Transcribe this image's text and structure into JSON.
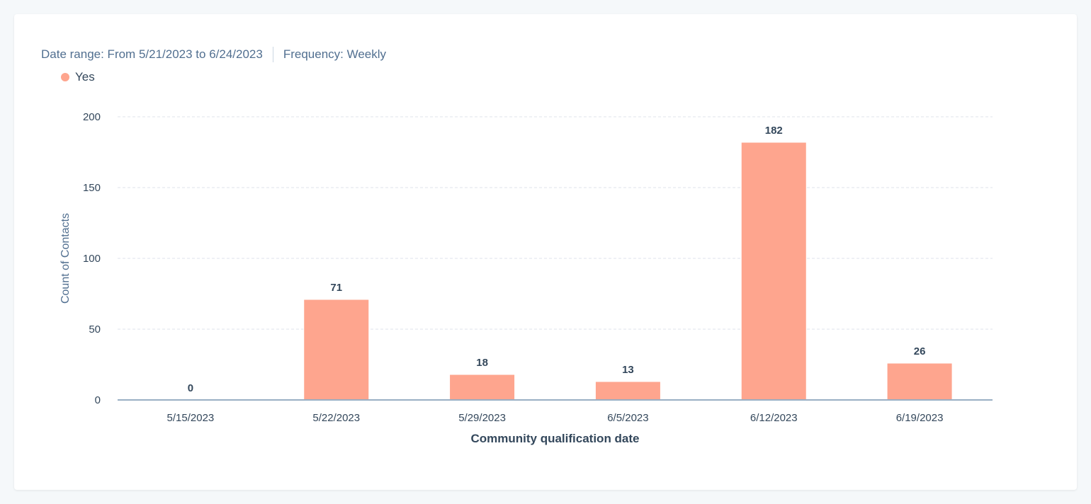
{
  "header": {
    "date_range": "Date range: From 5/21/2023 to 6/24/2023",
    "frequency": "Frequency: Weekly"
  },
  "chart_data": {
    "type": "bar",
    "categories": [
      "5/15/2023",
      "5/22/2023",
      "5/29/2023",
      "6/5/2023",
      "6/12/2023",
      "6/19/2023"
    ],
    "series": [
      {
        "name": "Yes",
        "values": [
          0,
          71,
          18,
          13,
          182,
          26
        ],
        "color": "#fea58e"
      }
    ],
    "xlabel": "Community qualification date",
    "ylabel": "Count of Contacts",
    "ylim": [
      0,
      200
    ],
    "yticks": [
      0,
      50,
      100,
      150,
      200
    ],
    "grid": true,
    "legend": "top-left"
  }
}
